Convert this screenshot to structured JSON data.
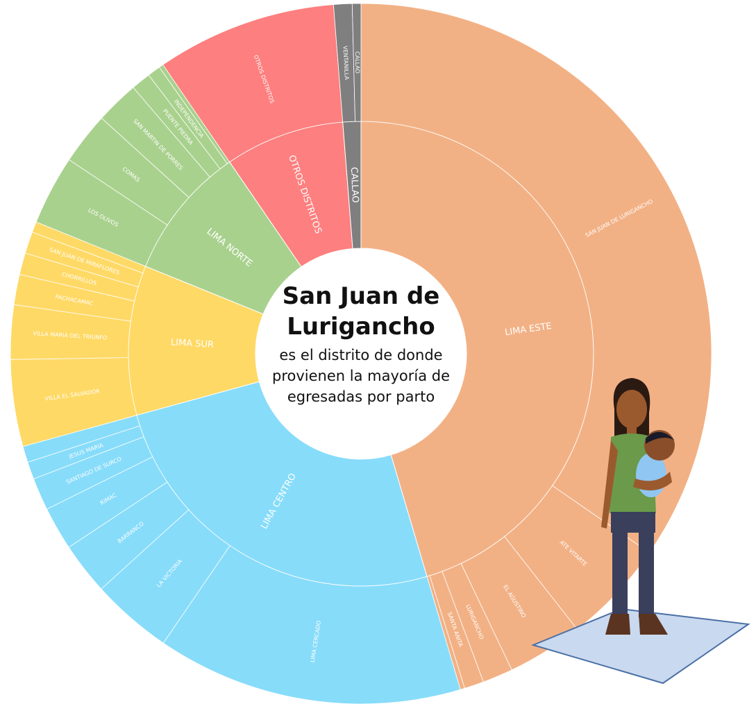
{
  "chart_data": {
    "type": "sunburst",
    "title": "San Juan de Lurigancho",
    "subtitle": "es el distrito de donde provienen la mayoría de egresadas por parto",
    "series": [
      {
        "name": "LIMA ESTE",
        "color": "#f2b185",
        "value": 45.4,
        "children": {
          "categories": [
            "SAN JUAN DE LURIGANCHO",
            "ATE VITARTE",
            "EL AGUSTINO",
            "LURIGANCHO",
            "SANTA ANITA",
            null
          ],
          "values": [
            34.6,
            4.8,
            3.5,
            1.4,
            0.9,
            0.2
          ]
        }
      },
      {
        "name": "LIMA CENTRO",
        "color": "#87dcfa",
        "value": 25.3,
        "children": {
          "categories": [
            "LIMA CERCADO",
            "LA VICTORIA",
            "BARRANCO",
            "RIMAC",
            "SANTIAGO DE SURCO",
            "JESUS MARIA",
            null
          ],
          "values": [
            14.1,
            3.75,
            2.4,
            2.0,
            1.5,
            0.8,
            0.75
          ]
        }
      },
      {
        "name": "LIMA SUR",
        "color": "#ffd966",
        "value": 10.4,
        "children": {
          "categories": [
            "VILLA EL SALVADOR",
            "VILLA MARIA DEL TRIUNFO",
            "PACHACAMAC",
            "CHORRILLOS",
            "SAN JUAN DE MIRAFLORES",
            null
          ],
          "values": [
            4.0,
            2.5,
            1.4,
            1.0,
            1.0,
            0.5
          ]
        }
      },
      {
        "name": "LIMA NORTE",
        "color": "#a9d18e",
        "value": 9.3,
        "children": {
          "categories": [
            "LOS OLIVOS",
            "COMAS",
            "SAN MARTIN DE PORRES",
            "PUENTE PIEDRA",
            "INDEPENDENCIA",
            null
          ],
          "values": [
            3.2,
            2.4,
            2.0,
            0.9,
            0.6,
            0.2
          ]
        }
      },
      {
        "name": "OTROS DISTRITOS",
        "color": "#fd7f7f",
        "value": 8.3,
        "children": {
          "categories": [
            "OTROS DISTRITOS"
          ],
          "values": [
            8.3
          ]
        }
      },
      {
        "name": "CALLAO",
        "color": "#7f7f7f",
        "value": 1.25,
        "children": {
          "categories": [
            "VENTANILLA",
            "CALLAO"
          ],
          "values": [
            0.85,
            0.4
          ]
        }
      }
    ]
  }
}
